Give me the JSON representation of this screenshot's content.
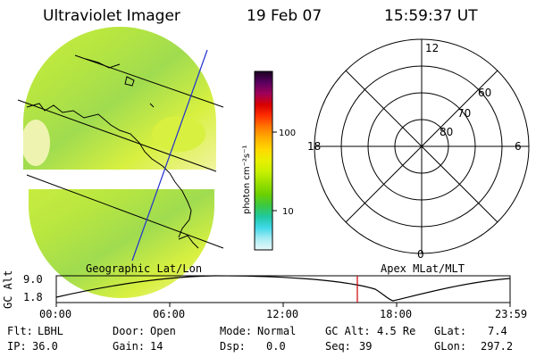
{
  "header": {
    "instrument": "Ultraviolet Imager",
    "date": "19 Feb 07",
    "time": "15:59:37 UT"
  },
  "colorbar": {
    "unit_label": "photon cm⁻²s⁻¹",
    "ticks": [
      "100",
      "10"
    ],
    "colors": [
      "#1a0020",
      "#5a0060",
      "#a0005a",
      "#d80000",
      "#ff3000",
      "#ff7a00",
      "#ffb000",
      "#ffd800",
      "#e8f000",
      "#c8f000",
      "#9ae000",
      "#6cd000",
      "#3cc840",
      "#20c8a0",
      "#40d8e8",
      "#a8ecf4",
      "#e8f8fa"
    ]
  },
  "polar": {
    "mlt_labels": {
      "top": "12",
      "left": "18",
      "right": "6",
      "bottom": "0"
    },
    "lat_labels": [
      "60",
      "70",
      "80"
    ]
  },
  "map": {
    "fill_colors": [
      "#c8ec40",
      "#b8e640",
      "#a0dc50",
      "#d8f040",
      "#f0f4a0"
    ]
  },
  "timeline": {
    "left_label": "Geographic Lat/Lon",
    "right_label": "Apex MLat/MLT",
    "y_axis_label": "GC Alt",
    "y_ticks": [
      "9.0",
      "1.8"
    ],
    "x_ticks": [
      "00:00",
      "06:00",
      "12:00",
      "18:00",
      "23:59"
    ],
    "marker_color": "#d00000"
  },
  "footer": {
    "row1": [
      {
        "label": "Flt:",
        "value": "LBHL"
      },
      {
        "label": "Door:",
        "value": "Open"
      },
      {
        "label": "Mode:",
        "value": "Normal"
      },
      {
        "label": "GC Alt:",
        "value": "4.5 Re"
      },
      {
        "label": "GLat:",
        "value": "7.4"
      }
    ],
    "row2": [
      {
        "label": "IP:",
        "value": "36.0"
      },
      {
        "label": "Gain:",
        "value": "14"
      },
      {
        "label": "Dsp:",
        "value": "0.0"
      },
      {
        "label": "Seq:",
        "value": "39"
      },
      {
        "label": "GLon:",
        "value": "297.2"
      }
    ]
  }
}
